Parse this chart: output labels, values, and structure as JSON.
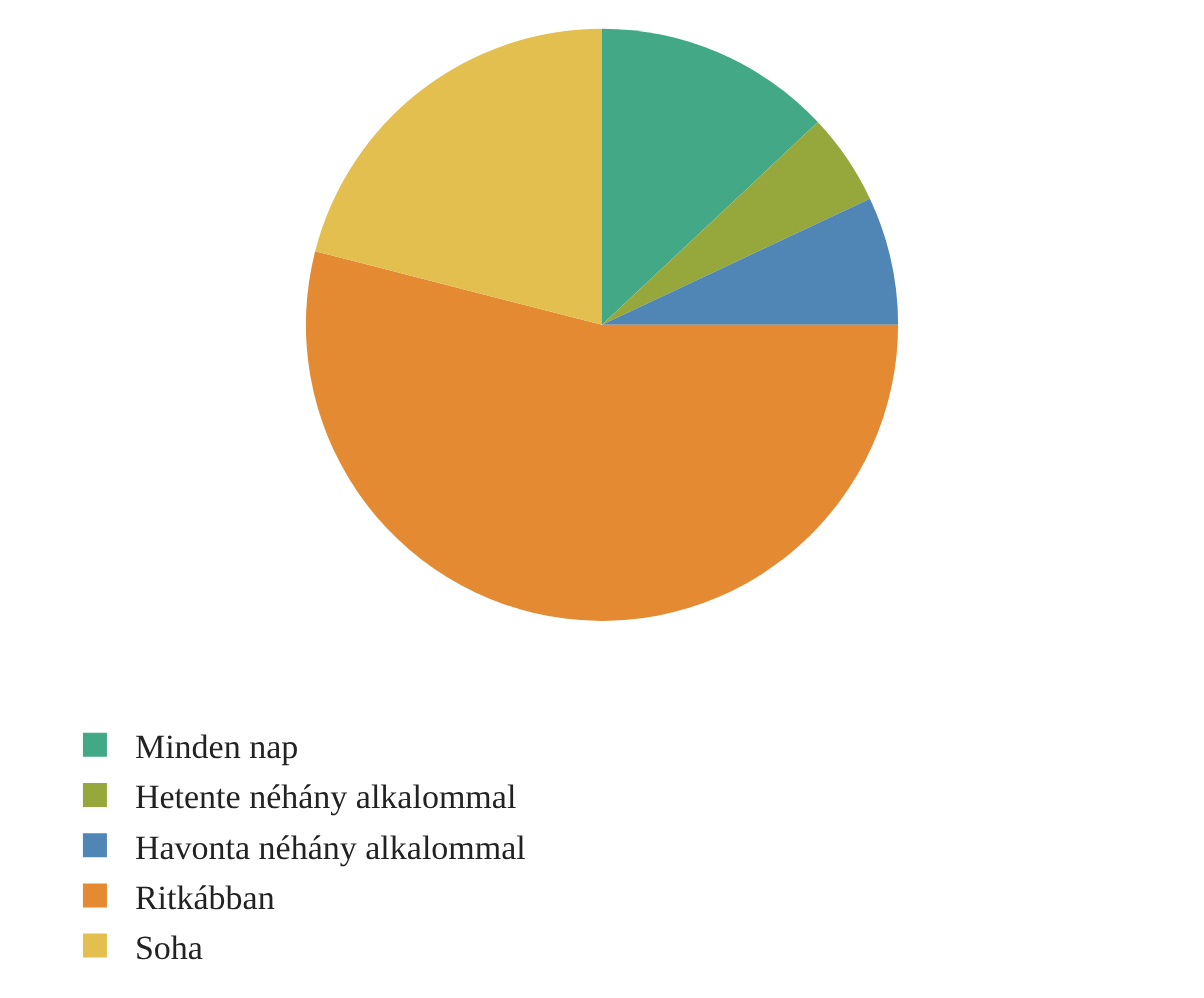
{
  "chart_data": {
    "type": "pie",
    "categories": [
      "Minden nap",
      "Hetente néhány alkalommal",
      "Havonta néhány alkalommal",
      "Ritkábban",
      "Soha"
    ],
    "values": [
      13,
      5,
      7,
      54,
      21
    ],
    "colors": [
      "#43a886",
      "#96a83c",
      "#4f86b5",
      "#e38a33",
      "#e3bf4f"
    ],
    "legend": "bottom"
  }
}
